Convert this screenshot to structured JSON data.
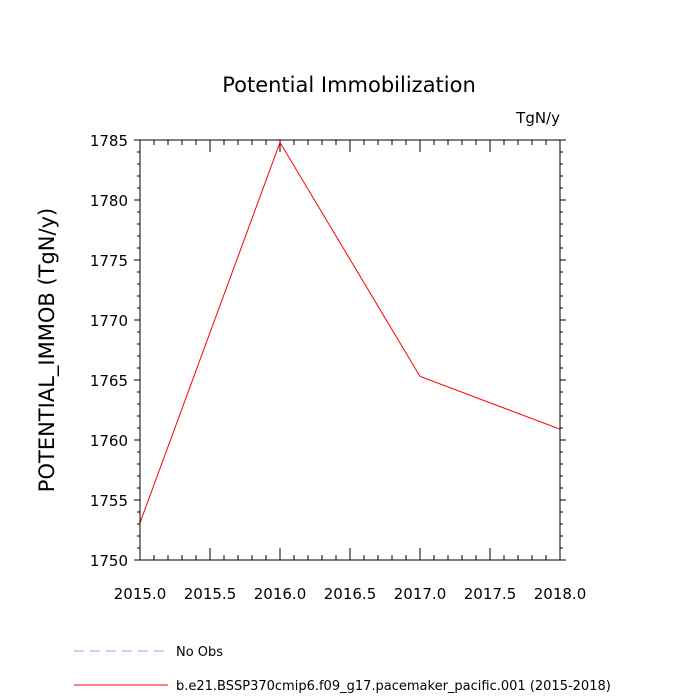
{
  "chart_data": {
    "type": "line",
    "title": "Potential Immobilization",
    "units_label": "TgN/y",
    "xlabel": "",
    "ylabel": "POTENTIAL_IMMOB  (TgN/y)",
    "xlim": [
      2015.0,
      2018.0
    ],
    "ylim": [
      1750,
      1785
    ],
    "xticks": [
      "2015.0",
      "2015.5",
      "2016.0",
      "2016.5",
      "2017.0",
      "2017.5",
      "2018.0"
    ],
    "xtick_values": [
      2015.0,
      2015.5,
      2016.0,
      2016.5,
      2017.0,
      2017.5,
      2018.0
    ],
    "yticks": [
      "1750",
      "1755",
      "1760",
      "1765",
      "1770",
      "1775",
      "1780",
      "1785"
    ],
    "ytick_values": [
      1750,
      1755,
      1760,
      1765,
      1770,
      1775,
      1780,
      1785
    ],
    "series": [
      {
        "name": "b.e21.BSSP370cmip6.f09_g17.pacemaker_pacific.001 (2015-2018)",
        "color": "#ff0000",
        "style": "solid",
        "x": [
          2015.0,
          2016.0,
          2017.0,
          2018.0
        ],
        "y": [
          1753.1,
          1784.8,
          1765.3,
          1760.9
        ]
      }
    ],
    "legend": [
      {
        "label": "No Obs",
        "color": "#9999ff",
        "style": "dashed"
      },
      {
        "label": "b.e21.BSSP370cmip6.f09_g17.pacemaker_pacific.001 (2015-2018)",
        "color": "#ff0000",
        "style": "solid"
      }
    ],
    "legend_position": "bottom-left",
    "grid": false
  }
}
